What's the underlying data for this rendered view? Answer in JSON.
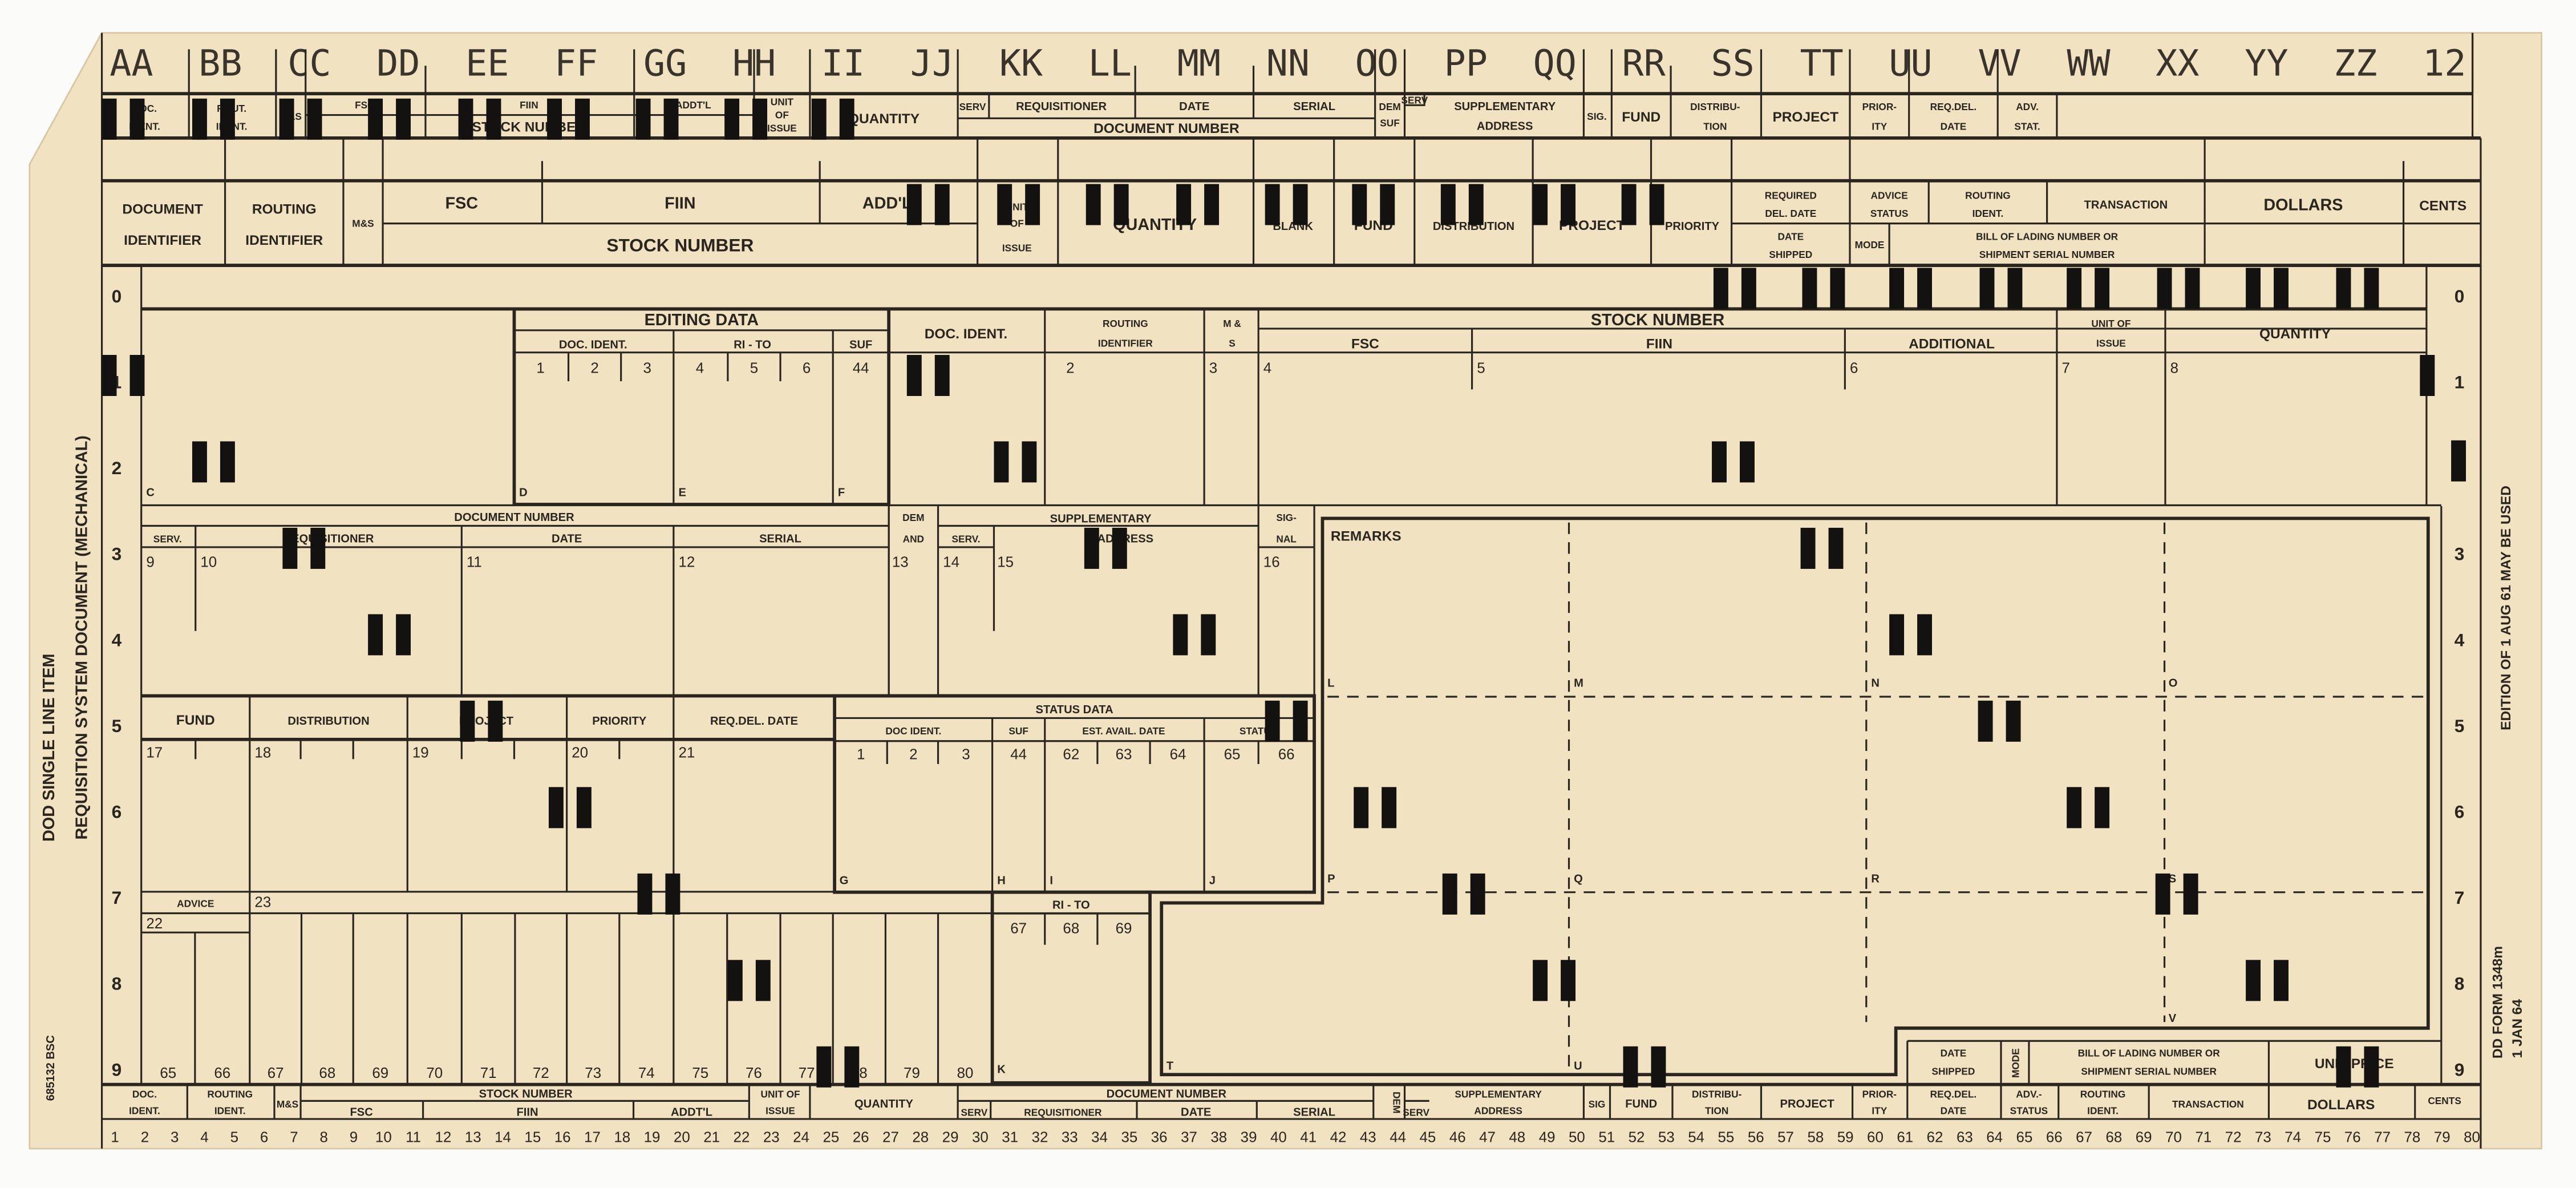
{
  "form": {
    "title_line1": "DOD SINGLE LINE ITEM",
    "title_line2": "REQUISITION SYSTEM DOCUMENT (MECHANICAL)",
    "stock_code": "685132 BSC",
    "edition_note": "EDITION OF 1 AUG 61 MAY BE USED",
    "form_number": "DD FORM 1348m",
    "form_date": "1 JAN 64"
  },
  "colors": {
    "card": "#f1e2c2",
    "ink": "#2b2520",
    "punch": "#141210"
  },
  "top_letters": [
    "AA",
    "BB",
    "CC",
    "DD",
    "EE",
    "FF",
    "GG",
    "HH",
    "II",
    "JJ",
    "KK",
    "LL",
    "MM",
    "NN",
    "OO",
    "PP",
    "QQ",
    "RR",
    "SS",
    "TT",
    "UU",
    "VV",
    "WW",
    "XX",
    "YY",
    "ZZ",
    "12"
  ],
  "header_top": {
    "doc_ident": [
      "DOC.",
      "IDENT."
    ],
    "rout_ident": [
      "ROUT.",
      "IDENT."
    ],
    "ms": "M&S",
    "fsc": "FSC",
    "fiin": "FIIN",
    "addtl": "ADDT'L",
    "stock_number": "STOCK NUMBER",
    "unit_of_issue": [
      "UNIT",
      "OF",
      "ISSUE"
    ],
    "quantity": "QUANTITY",
    "serv": "SERV",
    "requisitioner": "REQUISITIONER",
    "date": "DATE",
    "serial": "SERIAL",
    "document_number": "DOCUMENT NUMBER",
    "dem_suf": [
      "DEM",
      "SUF"
    ],
    "serv2": "SERV",
    "supplementary_address": [
      "SUPPLEMENTARY",
      "ADDRESS"
    ],
    "sig": "SIG.",
    "fund": "FUND",
    "distribution": [
      "DISTRIBU-",
      "TION"
    ],
    "project": "PROJECT",
    "priority": [
      "PRIOR-",
      "ITY"
    ],
    "req_del_date": [
      "REQ.DEL.",
      "DATE"
    ],
    "adv_stat": [
      "ADV.",
      "STAT."
    ]
  },
  "header_main": {
    "document_identifier": [
      "DOCUMENT",
      "IDENTIFIER"
    ],
    "routing_identifier": [
      "ROUTING",
      "IDENTIFIER"
    ],
    "ms": "M&S",
    "fsc": "FSC",
    "fiin": "FIIN",
    "addl": "ADD'L",
    "stock_number": "STOCK NUMBER",
    "unit_of_issue": [
      "UNIT",
      "OF",
      "ISSUE"
    ],
    "quantity": "QUANTITY",
    "blank": "BLANK",
    "fund": "FUND",
    "distribution": "DISTRIBUTION",
    "project": "PROJECT",
    "priority": "PRIORITY",
    "required_del_date": [
      "REQUIRED",
      "DEL. DATE"
    ],
    "date_shipped": [
      "DATE",
      "SHIPPED"
    ],
    "advice_status": [
      "ADVICE",
      "STATUS"
    ],
    "mode": "MODE",
    "routing_ident": [
      "ROUTING",
      "IDENT."
    ],
    "transaction": "TRANSACTION",
    "bill_of_lading": [
      "BILL OF LADING NUMBER OR",
      "SHIPMENT SERIAL NUMBER"
    ],
    "dollars": "DOLLARS",
    "cents": "CENTS"
  },
  "row_digits": [
    "0",
    "1",
    "2",
    "3",
    "4",
    "5",
    "6",
    "7",
    "8",
    "9"
  ],
  "editing": {
    "title": "EDITING DATA",
    "doc_ident": "DOC. IDENT.",
    "ri_to": "RI - TO",
    "suf": "SUF",
    "cols": [
      "1",
      "2",
      "3",
      "4",
      "5",
      "6",
      "44"
    ],
    "letters": [
      "C",
      "D",
      "E",
      "F"
    ]
  },
  "upper_right": {
    "doc_ident": "DOC. IDENT.",
    "routing_identifier": [
      "ROUTING",
      "IDENTIFIER"
    ],
    "ms": [
      "M &",
      "S"
    ],
    "stock_number": "STOCK NUMBER",
    "fsc": "FSC",
    "fiin": "FIIN",
    "additional": "ADDITIONAL",
    "unit_of_issue": [
      "UNIT OF",
      "ISSUE"
    ],
    "quantity": "QUANTITY",
    "cols": [
      "2",
      "3",
      "4",
      "5",
      "6",
      "7",
      "8"
    ]
  },
  "document_number": {
    "title": "DOCUMENT NUMBER",
    "serv": "SERV.",
    "requisitioner": "REQUISITIONER",
    "date": "DATE",
    "serial": "SERIAL",
    "dem_and": [
      "DEM",
      "AND"
    ],
    "serv2": "SERV.",
    "supplementary_address": [
      "SUPPLEMENTARY",
      "ADDRESS"
    ],
    "signal": [
      "SIG-",
      "NAL"
    ],
    "cols": [
      "9",
      "10",
      "11",
      "12",
      "13",
      "14",
      "15",
      "16"
    ]
  },
  "remarks": {
    "title": "REMARKS",
    "letters": [
      "L",
      "M",
      "N",
      "O",
      "P",
      "Q",
      "R",
      "S",
      "T",
      "U",
      "V"
    ]
  },
  "middle": {
    "fund": "FUND",
    "distribution": "DISTRIBUTION",
    "project": "PROJECT",
    "priority": "PRIORITY",
    "req_del_date": "REQ.DEL. DATE",
    "cols": [
      "17",
      "18",
      "19",
      "20",
      "21"
    ],
    "advice": "ADVICE",
    "col22": "22",
    "col23": "23"
  },
  "status_data": {
    "title": "STATUS DATA",
    "doc_ident": "DOC IDENT.",
    "suf": "SUF",
    "est_avail_date": "EST. AVAIL. DATE",
    "status": "STATUS",
    "cols": [
      "1",
      "2",
      "3",
      "44",
      "62",
      "63",
      "64",
      "65",
      "66"
    ],
    "letters": [
      "G",
      "H",
      "I",
      "J"
    ]
  },
  "ri_to": {
    "title": "RI - TO",
    "cols": [
      "67",
      "68",
      "69"
    ],
    "letter": "K"
  },
  "lower_cols": [
    "65",
    "66",
    "67",
    "68",
    "69",
    "70",
    "71",
    "72",
    "73",
    "74",
    "75",
    "76",
    "77",
    "78",
    "79",
    "80"
  ],
  "shipping_panel": {
    "date_shipped": [
      "DATE",
      "SHIPPED"
    ],
    "mode": "MODE",
    "bill_of_lading": [
      "BILL OF LADING NUMBER OR",
      "SHIPMENT SERIAL NUMBER"
    ],
    "unit_price": "UNIT PRICE"
  },
  "footer_header": {
    "doc_ident": [
      "DOC.",
      "IDENT."
    ],
    "routing_ident": [
      "ROUTING",
      "IDENT."
    ],
    "ms": "M&S",
    "stock_number": "STOCK NUMBER",
    "fsc": "FSC",
    "fiin": "FIIN",
    "addtl": "ADDT'L",
    "unit_of_issue": [
      "UNIT OF",
      "ISSUE"
    ],
    "quantity": "QUANTITY",
    "document_number": "DOCUMENT NUMBER",
    "serv": "SERV",
    "requisitioner": "REQUISITIONER",
    "date": "DATE",
    "serial": "SERIAL",
    "dem": "DEM",
    "serv2": "SERV",
    "supplementary_address": [
      "SUPPLEMENTARY",
      "ADDRESS"
    ],
    "sig": "SIG",
    "fund": "FUND",
    "distribution": [
      "DISTRIBU-",
      "TION"
    ],
    "project": "PROJECT",
    "priority": [
      "PRIOR-",
      "ITY"
    ],
    "req_del_date": [
      "REQ.DEL.",
      "DATE"
    ],
    "adv_status": [
      "ADV.-",
      "STATUS"
    ],
    "routing_ident2": [
      "ROUTING",
      "IDENT."
    ],
    "transaction": "TRANSACTION",
    "dollars": "DOLLARS",
    "cents": "CENTS"
  },
  "column_numbers": [
    "1",
    "2",
    "3",
    "4",
    "5",
    "6",
    "7",
    "8",
    "9",
    "10",
    "11",
    "12",
    "13",
    "14",
    "15",
    "16",
    "17",
    "18",
    "19",
    "20",
    "21",
    "22",
    "23",
    "24",
    "25",
    "26",
    "27",
    "28",
    "29",
    "30",
    "31",
    "32",
    "33",
    "34",
    "35",
    "36",
    "37",
    "38",
    "39",
    "40",
    "41",
    "42",
    "43",
    "44",
    "45",
    "46",
    "47",
    "48",
    "49",
    "50",
    "51",
    "52",
    "53",
    "54",
    "55",
    "56",
    "57",
    "58",
    "59",
    "60",
    "61",
    "62",
    "63",
    "64",
    "65",
    "66",
    "67",
    "68",
    "69",
    "70",
    "71",
    "72",
    "73",
    "74",
    "75",
    "76",
    "77",
    "78",
    "79",
    "80"
  ]
}
